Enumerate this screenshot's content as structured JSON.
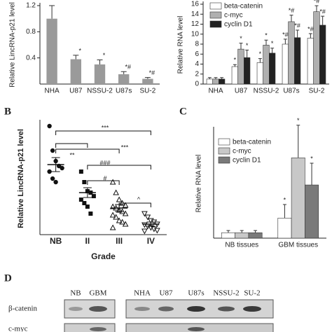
{
  "chart_data": [
    {
      "type": "bar",
      "y_label": "Relative LincRNA-p21 level",
      "categories": [
        "NHA",
        "U87",
        "NSSU-2",
        "U87s",
        "SU-2"
      ],
      "values": [
        1.0,
        0.38,
        0.3,
        0.15,
        0.08
      ],
      "errors": [
        0.2,
        0.06,
        0.07,
        0.04,
        0.02
      ],
      "annotations": [
        null,
        "*",
        "*",
        "*#",
        "*#"
      ],
      "color": "#9a9a9a",
      "ylim": [
        0,
        1.2
      ],
      "yticks": [
        0.4,
        0.8,
        1.2
      ]
    },
    {
      "type": "grouped_bar",
      "y_label": "Relative RNA level",
      "categories": [
        "NHA",
        "U87",
        "NSSU-2",
        "U87s",
        "SU-2"
      ],
      "series": [
        {
          "name": "beta-catenin",
          "color": "#ffffff",
          "values": [
            1,
            3.5,
            4.3,
            8,
            9.2
          ],
          "errors": [
            0.3,
            0.4,
            0.8,
            1,
            0.9
          ],
          "annotations": [
            null,
            "*",
            "*",
            "*#",
            "*#"
          ]
        },
        {
          "name": "c-myc",
          "color": "#b0b0b0",
          "values": [
            1,
            7,
            7.8,
            12.5,
            14.5
          ],
          "errors": [
            0.3,
            1.2,
            1,
            1.3,
            1.2
          ],
          "annotations": [
            null,
            "*",
            "*",
            "*#",
            "*#"
          ]
        },
        {
          "name": "cyclin D1",
          "color": "#222222",
          "values": [
            1,
            5.3,
            6.2,
            9.3,
            11.8
          ],
          "errors": [
            0.3,
            1.5,
            1,
            1.5,
            1.8
          ],
          "annotations": [
            null,
            "*",
            "*",
            "*#",
            "*#"
          ]
        }
      ],
      "ylim": [
        0,
        16
      ],
      "yticks": [
        0,
        2,
        4,
        6,
        8,
        10,
        12,
        14,
        16
      ],
      "legend": "upper-left"
    },
    {
      "type": "strip",
      "y_label": "Relative LincRNA-p21 level",
      "x_label": "Grade",
      "categories": [
        "NB",
        "II",
        "III",
        "IV"
      ],
      "values": [
        [
          1.55,
          1.2,
          1.05,
          0.98,
          0.95,
          0.9,
          0.8,
          0.75
        ],
        [
          0.9,
          0.75,
          0.62,
          0.6,
          0.55,
          0.5,
          0.45,
          0.4,
          0.3
        ],
        [
          0.75,
          0.6,
          0.5,
          0.45,
          0.42,
          0.4,
          0.38,
          0.35,
          0.33,
          0.3,
          0.28,
          0.25,
          0.2,
          0.18,
          0.15,
          0.1
        ],
        [
          0.3,
          0.25,
          0.2,
          0.18,
          0.15,
          0.14,
          0.12,
          0.1,
          0.08,
          0.06,
          0.05
        ]
      ],
      "means": [
        1.0,
        0.6,
        0.38,
        0.15
      ],
      "errors": [
        0.1,
        0.07,
        0.05,
        0.03
      ],
      "significance": [
        "***",
        "**",
        "***",
        "###",
        "#",
        "^"
      ],
      "ylim": [
        0,
        1.6
      ]
    },
    {
      "type": "grouped_bar",
      "y_label": "Relative RNA level",
      "categories": [
        "NB tissues",
        "GBM tissues"
      ],
      "series": [
        {
          "name": "beta-catenin",
          "color": "#ffffff",
          "values": [
            1,
            3.7
          ],
          "errors": [
            0.4,
            2.5
          ],
          "annotations": [
            null,
            "*"
          ]
        },
        {
          "name": "c-myc",
          "color": "#c8c8c8",
          "values": [
            1,
            14.8
          ],
          "errors": [
            0.4,
            6
          ],
          "annotations": [
            null,
            "*"
          ]
        },
        {
          "name": "cyclin D1",
          "color": "#7a7a7a",
          "values": [
            1,
            9.8
          ],
          "errors": [
            0.4,
            4
          ],
          "annotations": [
            null,
            "*"
          ]
        }
      ],
      "ylim": [
        0,
        20
      ],
      "legend": "upper-left"
    }
  ],
  "panel_labels": [
    "B",
    "C",
    "D"
  ],
  "blot": {
    "lanes_left": [
      "NB",
      "GBM"
    ],
    "lanes_right": [
      "NHA",
      "U87",
      "U87s",
      "NSSU-2",
      "SU-2"
    ],
    "rows": [
      "β-catenin",
      "c-myc"
    ]
  }
}
